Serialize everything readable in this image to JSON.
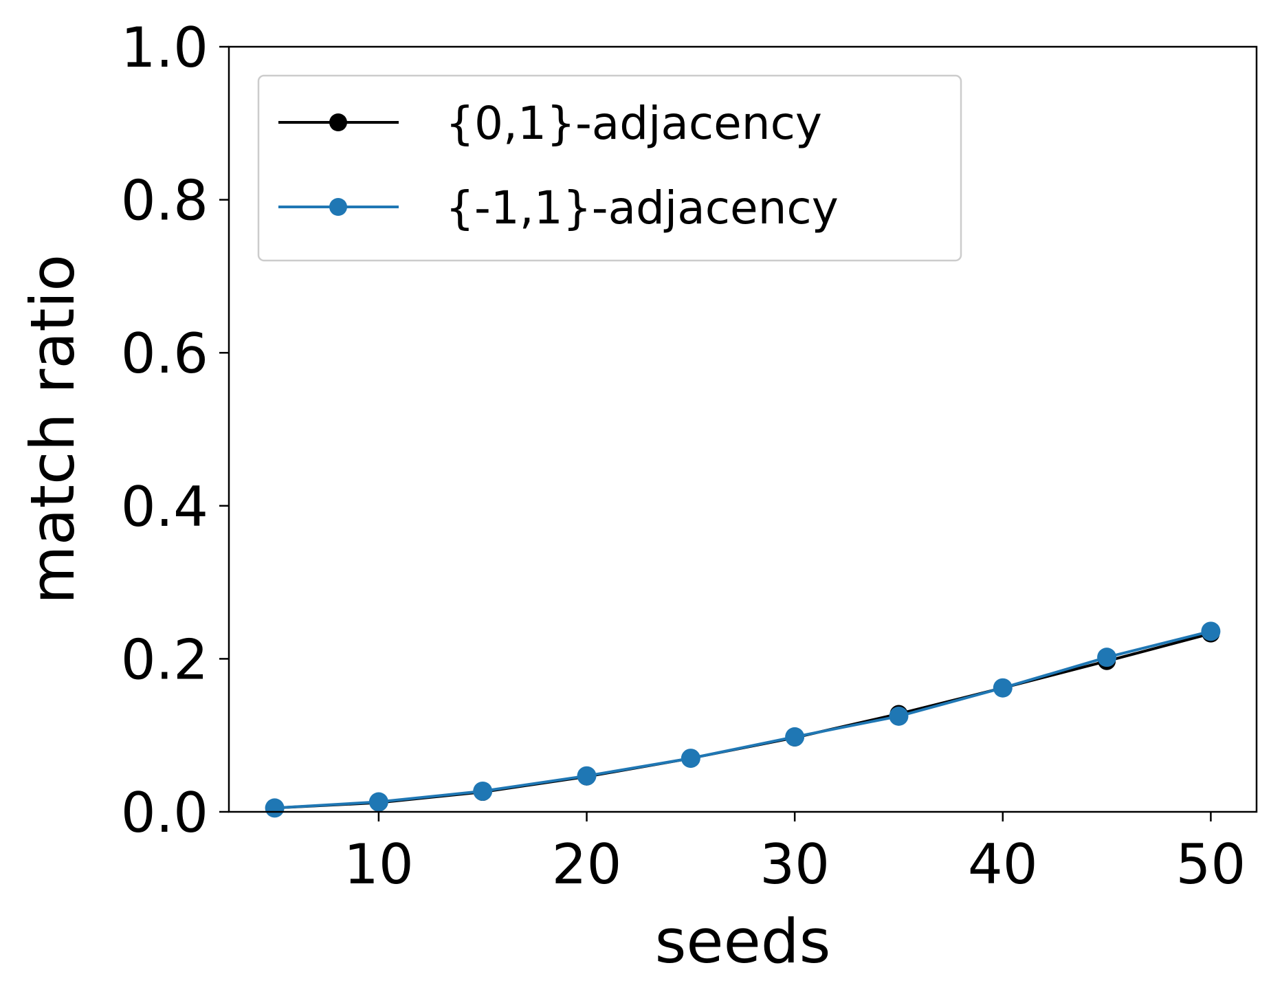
{
  "chart_data": {
    "type": "line",
    "xlabel": "seeds",
    "ylabel": "match ratio",
    "xlim": [
      2.8,
      52.2
    ],
    "ylim": [
      0.0,
      1.0
    ],
    "xticks": [
      10,
      20,
      30,
      40,
      50
    ],
    "xtick_labels": [
      "10",
      "20",
      "30",
      "40",
      "50"
    ],
    "yticks": [
      0.0,
      0.2,
      0.4,
      0.6,
      0.8,
      1.0
    ],
    "ytick_labels": [
      "0.0",
      "0.2",
      "0.4",
      "0.6",
      "0.8",
      "1.0"
    ],
    "grid": false,
    "legend_position": "top-left",
    "x": [
      5,
      10,
      15,
      20,
      25,
      30,
      35,
      40,
      45,
      50
    ],
    "series": [
      {
        "name": "{0,1}-adjacency",
        "color": "#000000",
        "values": [
          0.005,
          0.012,
          0.026,
          0.046,
          0.07,
          0.097,
          0.128,
          0.162,
          0.197,
          0.233
        ]
      },
      {
        "name": "{-1,1}-adjacency",
        "color": "#1f77b4",
        "values": [
          0.005,
          0.013,
          0.027,
          0.047,
          0.07,
          0.098,
          0.125,
          0.162,
          0.202,
          0.236
        ]
      }
    ]
  }
}
